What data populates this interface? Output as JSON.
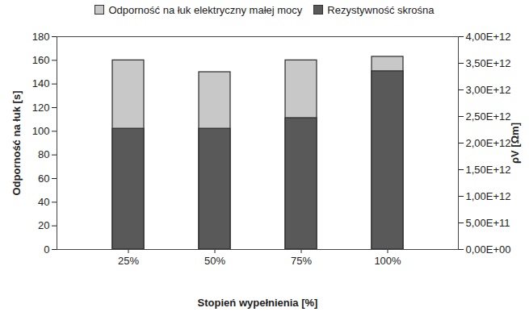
{
  "chart_data": {
    "type": "bar",
    "categories": [
      "25%",
      "50%",
      "75%",
      "100%"
    ],
    "xlabel": "Stopień wypełnienia [%]",
    "ylabel": "Odporność na łuk [s]",
    "y2label": "ρV [Ωm]",
    "ylim": [
      0,
      180
    ],
    "yticks": [
      0,
      20,
      40,
      60,
      80,
      100,
      120,
      140,
      160,
      180
    ],
    "y2lim": [
      0,
      4000000000000
    ],
    "y2ticks": [
      {
        "value": 0,
        "label": "0,00E+00"
      },
      {
        "value": 500000000000,
        "label": "5,00E+11"
      },
      {
        "value": 1000000000000,
        "label": "1,00E+12"
      },
      {
        "value": 1500000000000,
        "label": "1,50E+12"
      },
      {
        "value": 2000000000000,
        "label": "2,00E+12"
      },
      {
        "value": 2500000000000,
        "label": "2,50E+12"
      },
      {
        "value": 3000000000000,
        "label": "3,00E+12"
      },
      {
        "value": 3500000000000,
        "label": "3,50E+12"
      },
      {
        "value": 4000000000000,
        "label": "4,00E+12"
      }
    ],
    "series": [
      {
        "name": "Odporność na łuk elektryczny małej mocy",
        "color": "#c8c8c8",
        "values": [
          160,
          150,
          160,
          163
        ]
      },
      {
        "name": "Rezystywność skrośna",
        "color": "#595959",
        "axis": "y2",
        "values": [
          2270000000000,
          2270000000000,
          2470000000000,
          3350000000000
        ]
      }
    ],
    "legend": "top",
    "grid": false,
    "stacked": false
  }
}
